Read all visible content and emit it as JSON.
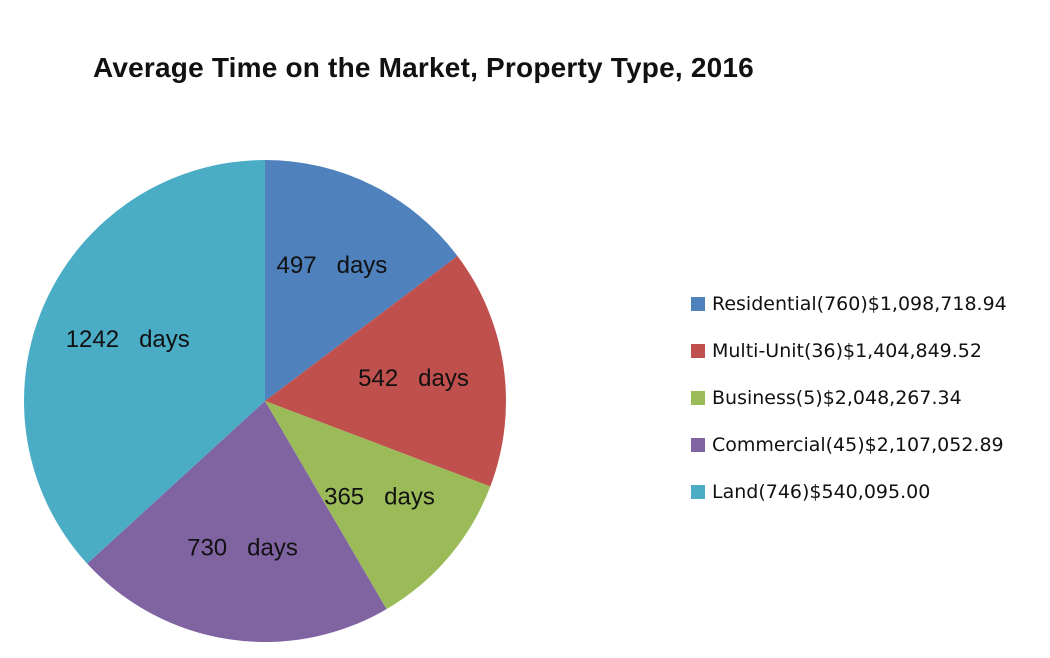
{
  "chart_data": {
    "type": "pie",
    "title": "Average Time on the Market, Property Type, 2016",
    "slices": [
      {
        "name": "Residential(760)$1,098,718.94",
        "value": 497,
        "label": "497   days",
        "color": "#4F81BD"
      },
      {
        "name": "Multi-Unit(36)$1,404,849.52",
        "value": 542,
        "label": "542   days",
        "color": "#C0504D"
      },
      {
        "name": "Business(5)$2,048,267.34",
        "value": 365,
        "label": "365   days",
        "color": "#9BBB59"
      },
      {
        "name": "Commercial(45)$2,107,052.89",
        "value": 730,
        "label": "730   days",
        "color": "#8064A2"
      },
      {
        "name": "Land(746)$540,095.00",
        "value": 1242,
        "label": "1242   days",
        "color": "#4BACC6"
      }
    ],
    "legend_position": "right",
    "start_angle": "12 o'clock",
    "direction": "clockwise"
  }
}
